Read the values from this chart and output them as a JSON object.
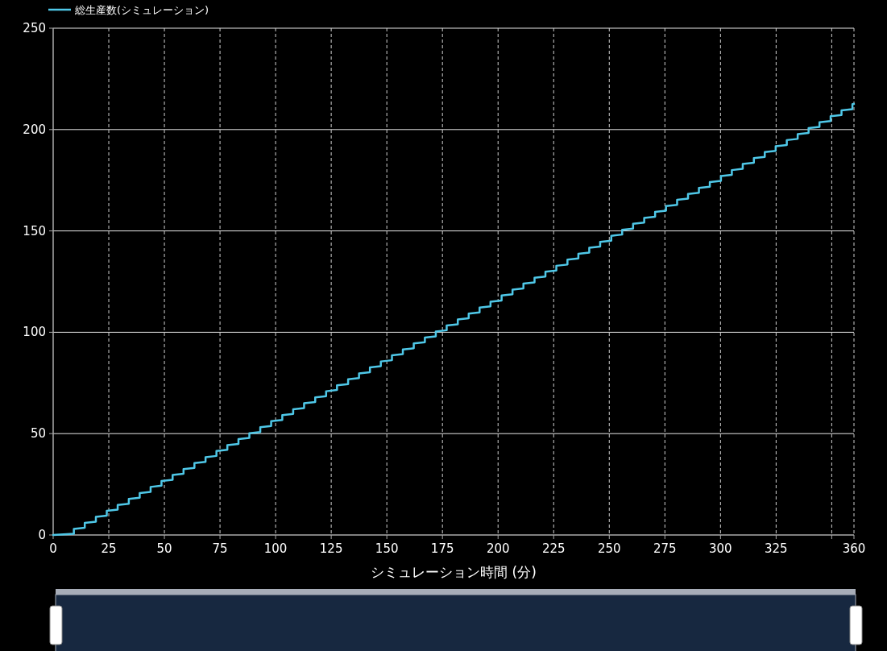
{
  "chart_data": {
    "type": "line",
    "xlabel": "シミュレーション時間 (分)",
    "legend": "top left",
    "grid": true,
    "marker": "none",
    "line_style": "solid",
    "xlim": [
      0,
      360
    ],
    "ylim": [
      0,
      250
    ],
    "xticks": [
      0,
      25,
      50,
      75,
      100,
      125,
      150,
      175,
      200,
      225,
      250,
      275,
      300,
      325,
      {
        "value": 350,
        "label": null
      },
      360
    ],
    "yticks": [
      0,
      50,
      100,
      150,
      200,
      250
    ],
    "series": [
      {
        "name": "総生産数(シミュレーション)",
        "color": "#4fc8e8",
        "x": [
          0,
          9.3,
          9.3,
          14.2,
          14.2,
          19.2,
          19.2,
          24.1,
          24.1,
          29.0,
          29.0,
          34.0,
          34.0,
          38.9,
          38.9,
          43.8,
          43.8,
          48.7,
          48.7,
          53.7,
          53.7,
          58.6,
          58.6,
          63.5,
          63.5,
          68.5,
          68.5,
          73.4,
          73.4,
          78.3,
          78.3,
          83.3,
          83.3,
          88.2,
          88.2,
          93.1,
          93.1,
          98.0,
          98.0,
          103.0,
          103.0,
          107.9,
          107.9,
          112.8,
          112.8,
          117.8,
          117.8,
          122.7,
          122.7,
          127.6,
          127.6,
          132.6,
          132.6,
          137.5,
          137.5,
          142.4,
          142.4,
          147.3,
          147.3,
          152.3,
          152.3,
          157.2,
          157.2,
          162.1,
          162.1,
          167.1,
          167.1,
          172.0,
          172.0,
          176.9,
          176.9,
          181.9,
          181.9,
          186.8,
          186.8,
          191.7,
          191.7,
          196.6,
          196.6,
          201.6,
          201.6,
          206.5,
          206.5,
          211.4,
          211.4,
          216.4,
          216.4,
          221.3,
          221.3,
          226.2,
          226.2,
          231.2,
          231.2,
          236.1,
          236.1,
          241.0,
          241.0,
          245.9,
          245.9,
          250.9,
          250.9,
          255.8,
          255.8,
          260.7,
          260.7,
          265.7,
          265.7,
          270.6,
          270.6,
          275.5,
          275.5,
          280.5,
          280.5,
          285.4,
          285.4,
          290.3,
          290.3,
          295.2,
          295.2,
          300.2,
          300.2,
          305.1,
          305.1,
          310.0,
          310.0,
          315.0,
          315.0,
          319.9,
          319.9,
          324.8,
          324.8,
          329.8,
          329.8,
          334.7,
          334.7,
          339.6,
          339.6,
          344.5,
          344.5,
          349.5,
          349.5,
          354.4,
          354.4,
          359.3,
          359.3,
          360
        ],
        "values": [
          0,
          0.6,
          3.0,
          3.6,
          6.0,
          6.6,
          8.9,
          9.5,
          11.9,
          12.5,
          14.8,
          15.4,
          17.8,
          18.4,
          20.7,
          21.3,
          23.7,
          24.3,
          26.6,
          27.2,
          29.6,
          30.2,
          32.5,
          33.1,
          35.5,
          36.1,
          38.4,
          39.0,
          41.4,
          42.0,
          44.3,
          44.9,
          47.3,
          47.9,
          50.2,
          50.8,
          53.2,
          53.8,
          56.1,
          56.7,
          59.1,
          59.7,
          62.0,
          62.6,
          65.0,
          65.6,
          67.9,
          68.5,
          70.9,
          71.5,
          73.8,
          74.4,
          76.8,
          77.4,
          79.7,
          80.3,
          82.7,
          83.3,
          85.6,
          86.2,
          88.6,
          89.2,
          91.5,
          92.1,
          94.5,
          95.1,
          97.4,
          98.0,
          100.4,
          101.0,
          103.3,
          103.9,
          106.3,
          106.9,
          109.2,
          109.8,
          112.2,
          112.8,
          115.1,
          115.7,
          118.1,
          118.7,
          121.0,
          121.6,
          124.0,
          124.6,
          126.9,
          127.5,
          129.9,
          130.5,
          132.8,
          133.4,
          135.8,
          136.4,
          138.7,
          139.3,
          141.7,
          142.3,
          144.6,
          145.2,
          147.6,
          148.2,
          150.5,
          151.1,
          153.5,
          154.1,
          156.4,
          157.0,
          159.4,
          160.0,
          162.3,
          162.9,
          165.3,
          165.9,
          168.2,
          168.8,
          171.2,
          171.8,
          174.1,
          174.7,
          177.1,
          177.7,
          180.0,
          180.6,
          183.0,
          183.6,
          185.9,
          186.5,
          188.9,
          189.5,
          191.8,
          192.4,
          194.8,
          195.4,
          197.7,
          198.3,
          200.7,
          201.3,
          203.6,
          204.2,
          206.6,
          207.2,
          209.5,
          210.1,
          212.5,
          212.6
        ]
      }
    ]
  }
}
